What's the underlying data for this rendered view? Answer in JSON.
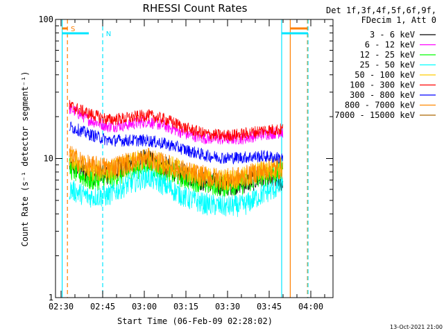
{
  "chart_data": {
    "type": "line",
    "title": "RHESSI Count Rates",
    "xlabel": "Start Time (06-Feb-09 02:28:02)",
    "ylabel": "Count Rate (s⁻¹ detector segment⁻¹)",
    "y_scale": "log",
    "ylim": [
      1,
      100
    ],
    "xlim": [
      "02:28",
      "04:08"
    ],
    "x_ticks": [
      "02:30",
      "02:45",
      "03:00",
      "03:15",
      "03:30",
      "03:45",
      "04:00"
    ],
    "y_ticks": [
      "1",
      "10",
      "100"
    ],
    "grid": false,
    "legend_placement": "top-right outside",
    "legend_header": [
      "Det 1f,3f,4f,5f,6f,9f,",
      "FDecim 1, Att 0"
    ],
    "footer_date": "13-Oct-2021 21:00",
    "flag_labels": {
      "saa": "S",
      "night": "N"
    },
    "series": [
      {
        "name": "3 - 6 keV",
        "color": "#000000",
        "x": [
          "02:33",
          "02:40",
          "02:47",
          "02:54",
          "03:01",
          "03:08",
          "03:15",
          "03:22",
          "03:29",
          "03:36",
          "03:43",
          "03:50"
        ],
        "values": [
          9.0,
          7.6,
          7.8,
          8.8,
          9.8,
          8.6,
          7.6,
          6.8,
          6.4,
          6.7,
          7.3,
          6.8
        ]
      },
      {
        "name": "6 - 12 keV",
        "color": "#ff00ff",
        "x": [
          "02:33",
          "02:40",
          "02:47",
          "02:54",
          "03:01",
          "03:08",
          "03:15",
          "03:22",
          "03:29",
          "03:36",
          "03:43",
          "03:50"
        ],
        "values": [
          23.0,
          19.0,
          17.0,
          17.5,
          18.5,
          17.0,
          15.0,
          14.0,
          13.8,
          14.0,
          15.0,
          15.5
        ]
      },
      {
        "name": "12 - 25 keV",
        "color": "#00ff00",
        "x": [
          "02:33",
          "02:40",
          "02:47",
          "02:54",
          "03:01",
          "03:08",
          "03:15",
          "03:22",
          "03:29",
          "03:36",
          "03:43",
          "03:50"
        ],
        "values": [
          8.5,
          7.0,
          7.1,
          8.0,
          9.0,
          8.0,
          7.2,
          6.6,
          6.3,
          6.6,
          7.5,
          8.0
        ]
      },
      {
        "name": "25 - 50 keV",
        "color": "#00ffff",
        "x": [
          "02:33",
          "02:40",
          "02:47",
          "02:54",
          "03:01",
          "03:08",
          "03:15",
          "03:22",
          "03:29",
          "03:36",
          "03:43",
          "03:50"
        ],
        "values": [
          6.0,
          5.3,
          5.4,
          6.5,
          7.4,
          6.3,
          5.2,
          4.7,
          4.5,
          4.6,
          5.6,
          6.4
        ]
      },
      {
        "name": "50 - 100 keV",
        "color": "#ffcc00",
        "x": [
          "02:33",
          "02:40",
          "02:47",
          "02:54",
          "03:01",
          "03:08",
          "03:15",
          "03:22",
          "03:29",
          "03:36",
          "03:43",
          "03:50"
        ],
        "values": [
          10.0,
          8.2,
          8.1,
          9.0,
          10.0,
          9.0,
          8.0,
          7.3,
          7.0,
          7.3,
          8.2,
          8.8
        ]
      },
      {
        "name": "100 - 300 keV",
        "color": "#ff0000",
        "x": [
          "02:33",
          "02:40",
          "02:47",
          "02:54",
          "03:01",
          "03:08",
          "03:15",
          "03:22",
          "03:29",
          "03:36",
          "03:43",
          "03:50"
        ],
        "values": [
          24.0,
          21.0,
          19.0,
          19.5,
          20.5,
          19.0,
          16.5,
          15.0,
          14.6,
          15.0,
          16.0,
          16.2
        ]
      },
      {
        "name": "300 - 800 keV",
        "color": "#0000ff",
        "x": [
          "02:33",
          "02:40",
          "02:47",
          "02:54",
          "03:01",
          "03:08",
          "03:15",
          "03:22",
          "03:29",
          "03:36",
          "03:43",
          "03:50"
        ],
        "values": [
          17.0,
          15.0,
          13.5,
          13.5,
          13.5,
          12.7,
          11.5,
          10.5,
          10.1,
          10.2,
          10.4,
          10.0
        ]
      },
      {
        "name": "800 - 7000 keV",
        "color": "#ff8800",
        "x": [
          "02:33",
          "02:40",
          "02:47",
          "02:54",
          "03:01",
          "03:08",
          "03:15",
          "03:22",
          "03:29",
          "03:36",
          "03:43",
          "03:50"
        ],
        "values": [
          10.5,
          8.8,
          8.6,
          9.3,
          10.0,
          9.0,
          8.0,
          7.4,
          7.1,
          7.4,
          8.2,
          8.5
        ]
      },
      {
        "name": "7000 - 15000 keV",
        "color": "#aa6600",
        "x": [],
        "values": []
      }
    ]
  }
}
